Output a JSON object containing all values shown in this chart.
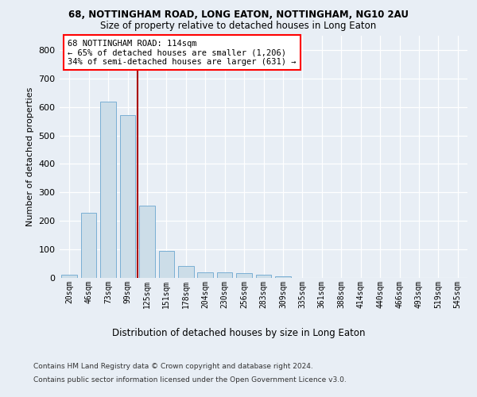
{
  "title": "68, NOTTINGHAM ROAD, LONG EATON, NOTTINGHAM, NG10 2AU",
  "subtitle": "Size of property relative to detached houses in Long Eaton",
  "xlabel": "Distribution of detached houses by size in Long Eaton",
  "ylabel": "Number of detached properties",
  "bar_fill_color": "#ccdde8",
  "bar_edge_color": "#7aafd4",
  "vline_color": "#aa0000",
  "vline_x": 3.5,
  "categories": [
    "20sqm",
    "46sqm",
    "73sqm",
    "99sqm",
    "125sqm",
    "151sqm",
    "178sqm",
    "204sqm",
    "230sqm",
    "256sqm",
    "283sqm",
    "309sqm",
    "335sqm",
    "361sqm",
    "388sqm",
    "414sqm",
    "440sqm",
    "466sqm",
    "493sqm",
    "519sqm",
    "545sqm"
  ],
  "values": [
    10,
    228,
    618,
    570,
    255,
    96,
    43,
    20,
    20,
    18,
    10,
    5,
    0,
    0,
    0,
    0,
    0,
    0,
    0,
    0,
    0
  ],
  "ylim": [
    0,
    850
  ],
  "yticks": [
    0,
    100,
    200,
    300,
    400,
    500,
    600,
    700,
    800
  ],
  "annotation_line1": "68 NOTTINGHAM ROAD: 114sqm",
  "annotation_line2": "← 65% of detached houses are smaller (1,206)",
  "annotation_line3": "34% of semi-detached houses are larger (631) →",
  "footer_line1": "Contains HM Land Registry data © Crown copyright and database right 2024.",
  "footer_line2": "Contains public sector information licensed under the Open Government Licence v3.0.",
  "bg_color": "#e8eef5",
  "grid_color": "#d0d8e4"
}
